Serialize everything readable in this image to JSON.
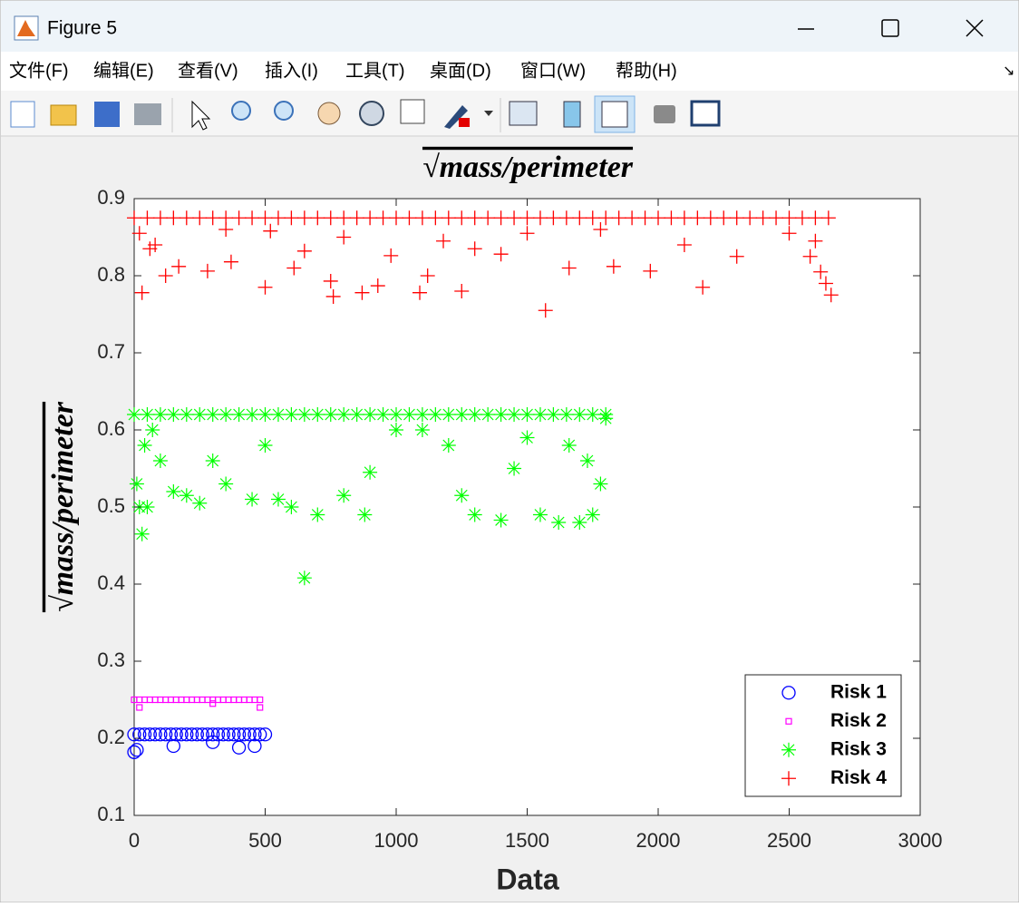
{
  "window": {
    "title": "Figure 5",
    "menu": [
      "文件(F)",
      "编辑(E)",
      "查看(V)",
      "插入(I)",
      "工具(T)",
      "桌面(D)",
      "窗口(W)",
      "帮助(H)"
    ]
  },
  "chart_data": {
    "type": "scatter",
    "title": "√mass/perimeter",
    "xlabel": "Data",
    "ylabel": "√mass/perimeter",
    "xlim": [
      0,
      3000
    ],
    "xticks": [
      0,
      500,
      1000,
      1500,
      2000,
      2500,
      3000
    ],
    "ylim": [
      0.1,
      0.9
    ],
    "yticks": [
      0.1,
      0.2,
      0.3,
      0.4,
      0.5,
      0.6,
      0.7,
      0.8,
      0.9
    ],
    "grid": false,
    "legend": "southeast",
    "series": [
      {
        "name": "Risk 1",
        "color": "#0000ff",
        "marker": "o",
        "x": [
          0,
          20,
          40,
          60,
          80,
          100,
          120,
          140,
          160,
          180,
          200,
          220,
          240,
          260,
          280,
          300,
          320,
          340,
          360,
          380,
          400,
          420,
          440,
          460,
          480,
          500,
          0,
          10,
          150,
          400,
          460,
          300
        ],
        "values": [
          0.205,
          0.205,
          0.205,
          0.205,
          0.205,
          0.205,
          0.205,
          0.205,
          0.205,
          0.205,
          0.205,
          0.205,
          0.205,
          0.205,
          0.205,
          0.205,
          0.205,
          0.205,
          0.205,
          0.205,
          0.205,
          0.205,
          0.205,
          0.205,
          0.205,
          0.205,
          0.182,
          0.185,
          0.19,
          0.188,
          0.19,
          0.195
        ]
      },
      {
        "name": "Risk 2",
        "color": "#ff00ff",
        "marker": "s",
        "x": [
          0,
          20,
          40,
          60,
          80,
          100,
          120,
          140,
          160,
          180,
          200,
          220,
          240,
          260,
          280,
          300,
          320,
          340,
          360,
          380,
          400,
          420,
          440,
          460,
          480,
          20,
          300,
          480
        ],
        "values": [
          0.25,
          0.25,
          0.25,
          0.25,
          0.25,
          0.25,
          0.25,
          0.25,
          0.25,
          0.25,
          0.25,
          0.25,
          0.25,
          0.25,
          0.25,
          0.25,
          0.25,
          0.25,
          0.25,
          0.25,
          0.25,
          0.25,
          0.25,
          0.25,
          0.25,
          0.24,
          0.245,
          0.24
        ]
      },
      {
        "name": "Risk 3",
        "color": "#00ff00",
        "marker": "*",
        "x": [
          0,
          50,
          100,
          150,
          200,
          250,
          300,
          350,
          400,
          450,
          500,
          550,
          600,
          650,
          700,
          750,
          800,
          850,
          900,
          950,
          1000,
          1050,
          1100,
          1150,
          1200,
          1250,
          1300,
          1350,
          1400,
          1450,
          1500,
          1550,
          1600,
          1650,
          1700,
          1750,
          1800,
          10,
          20,
          30,
          50,
          40,
          70,
          100,
          150,
          200,
          250,
          300,
          350,
          450,
          500,
          550,
          600,
          650,
          700,
          800,
          880,
          900,
          1000,
          1100,
          1200,
          1250,
          1300,
          1400,
          1450,
          1500,
          1550,
          1620,
          1700,
          1750,
          1780,
          1800,
          1730,
          1660
        ],
        "values": [
          0.62,
          0.62,
          0.62,
          0.62,
          0.62,
          0.62,
          0.62,
          0.62,
          0.62,
          0.62,
          0.62,
          0.62,
          0.62,
          0.62,
          0.62,
          0.62,
          0.62,
          0.62,
          0.62,
          0.62,
          0.62,
          0.62,
          0.62,
          0.62,
          0.62,
          0.62,
          0.62,
          0.62,
          0.62,
          0.62,
          0.62,
          0.62,
          0.62,
          0.62,
          0.62,
          0.62,
          0.62,
          0.53,
          0.5,
          0.465,
          0.5,
          0.58,
          0.6,
          0.56,
          0.52,
          0.515,
          0.505,
          0.56,
          0.53,
          0.51,
          0.58,
          0.51,
          0.5,
          0.408,
          0.49,
          0.515,
          0.49,
          0.545,
          0.6,
          0.6,
          0.58,
          0.515,
          0.49,
          0.483,
          0.55,
          0.59,
          0.49,
          0.48,
          0.48,
          0.49,
          0.53,
          0.615,
          0.56,
          0.58
        ]
      },
      {
        "name": "Risk 4",
        "color": "#ff0000",
        "marker": "+",
        "x": [
          0,
          50,
          100,
          150,
          200,
          250,
          300,
          350,
          400,
          450,
          500,
          550,
          600,
          650,
          700,
          750,
          800,
          850,
          900,
          950,
          1000,
          1050,
          1100,
          1150,
          1200,
          1250,
          1300,
          1350,
          1400,
          1450,
          1500,
          1550,
          1600,
          1650,
          1700,
          1750,
          1800,
          1850,
          1900,
          1950,
          2000,
          2050,
          2100,
          2150,
          2200,
          2250,
          2300,
          2350,
          2400,
          2450,
          2500,
          2550,
          2600,
          2650,
          20,
          30,
          60,
          80,
          120,
          170,
          280,
          370,
          500,
          520,
          610,
          650,
          750,
          760,
          870,
          930,
          980,
          1090,
          1120,
          1250,
          1180,
          1300,
          1400,
          1570,
          1660,
          1780,
          1830,
          1970,
          2170,
          2300,
          2500,
          2580,
          2620,
          2640,
          2660,
          2600,
          1500,
          800,
          350,
          2100
        ],
        "values": [
          0.875,
          0.875,
          0.875,
          0.875,
          0.875,
          0.875,
          0.875,
          0.875,
          0.875,
          0.875,
          0.875,
          0.875,
          0.875,
          0.875,
          0.875,
          0.875,
          0.875,
          0.875,
          0.875,
          0.875,
          0.875,
          0.875,
          0.875,
          0.875,
          0.875,
          0.875,
          0.875,
          0.875,
          0.875,
          0.875,
          0.875,
          0.875,
          0.875,
          0.875,
          0.875,
          0.875,
          0.875,
          0.875,
          0.875,
          0.875,
          0.875,
          0.875,
          0.875,
          0.875,
          0.875,
          0.875,
          0.875,
          0.875,
          0.875,
          0.875,
          0.875,
          0.875,
          0.875,
          0.875,
          0.855,
          0.778,
          0.835,
          0.84,
          0.8,
          0.812,
          0.806,
          0.818,
          0.785,
          0.858,
          0.81,
          0.832,
          0.793,
          0.773,
          0.778,
          0.787,
          0.826,
          0.778,
          0.8,
          0.78,
          0.845,
          0.835,
          0.828,
          0.755,
          0.81,
          0.86,
          0.812,
          0.806,
          0.785,
          0.825,
          0.855,
          0.825,
          0.805,
          0.79,
          0.775,
          0.845,
          0.855,
          0.85,
          0.86,
          0.84
        ]
      }
    ]
  }
}
